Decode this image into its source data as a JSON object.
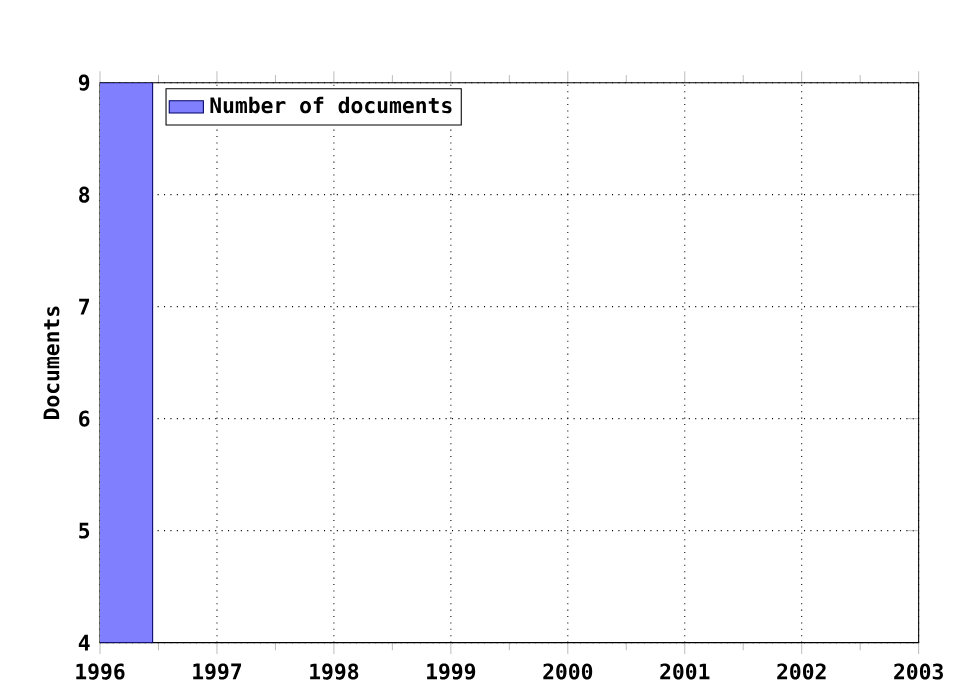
{
  "chart_data": {
    "type": "bar",
    "ylabel": "Documents",
    "x": [
      1996
    ],
    "series": [
      {
        "name": "Number of documents",
        "color": "#8080ff",
        "values": [
          9
        ]
      }
    ],
    "xlim": [
      1996,
      2003
    ],
    "xticks": [
      1996,
      1997,
      1998,
      1999,
      2000,
      2001,
      2002,
      2003
    ],
    "ylim": [
      4,
      9
    ],
    "yticks": [
      4,
      5,
      6,
      7,
      8,
      9
    ],
    "grid": true,
    "legend": "top left"
  }
}
